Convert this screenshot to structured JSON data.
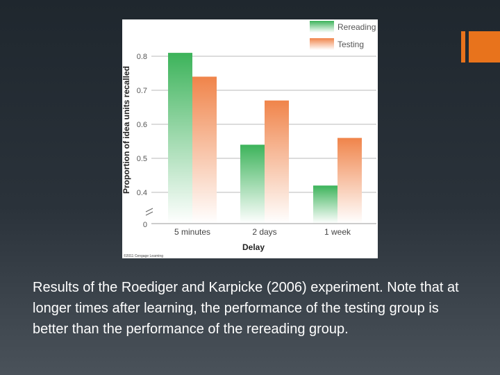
{
  "slide": {
    "caption": "Results of the Roediger and Karpicke (2006) experiment. Note that at longer times after learning, the performance of the testing group is better than the performance of the rereading group.",
    "accent_color": "#e8731c"
  },
  "chart_data": {
    "type": "bar",
    "title": "",
    "xlabel": "Delay",
    "ylabel": "Proportion of idea units recalled",
    "categories": [
      "5 minutes",
      "2 days",
      "1 week"
    ],
    "series": [
      {
        "name": "Rereading",
        "values": [
          0.81,
          0.54,
          0.42
        ],
        "color": "#3cb35a"
      },
      {
        "name": "Testing",
        "values": [
          0.74,
          0.67,
          0.56
        ],
        "color": "#f0844a"
      }
    ],
    "yticks": [
      "0.8",
      "0.7",
      "0.6",
      "0.5",
      "0.4"
    ],
    "y_origin_label": "0",
    "ylim": [
      0.3,
      0.85
    ],
    "axis_break": true,
    "grid": true,
    "legend_position": "top-right",
    "copyright": "©2011 Cengage Learning"
  }
}
